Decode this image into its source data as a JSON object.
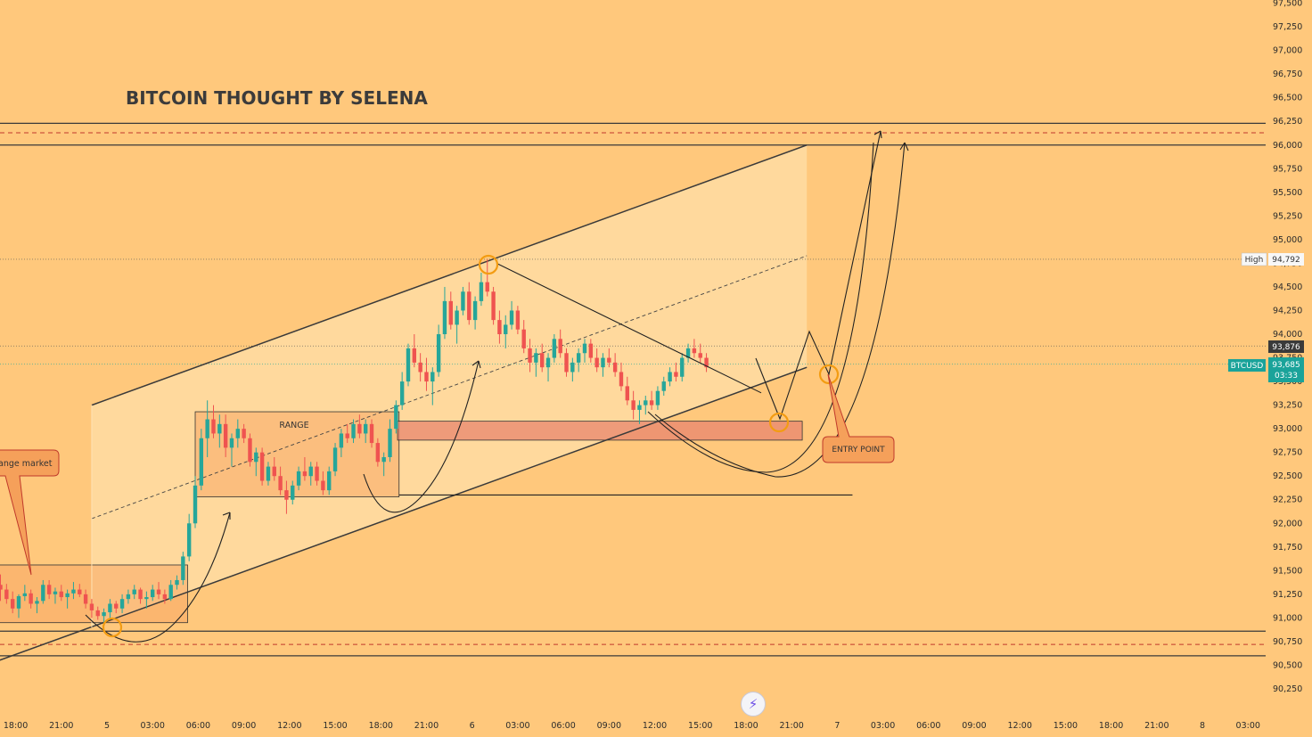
{
  "chart_data": {
    "type": "candlestick",
    "title": "BITCOIN THOUGHT BY SELENA",
    "symbol": "BTCUSD",
    "y_ticks": [
      90250,
      90500,
      90750,
      91000,
      91250,
      91500,
      91750,
      92000,
      92250,
      92500,
      92750,
      93000,
      93250,
      93500,
      93750,
      94000,
      94250,
      94500,
      94750,
      95000,
      95250,
      95500,
      95750,
      96000,
      96250,
      96500,
      96750,
      97000,
      97250,
      97500
    ],
    "y_tick_labels": [
      "90,250",
      "90,500",
      "90,750",
      "91,000",
      "91,250",
      "91,500",
      "91,750",
      "92,000",
      "92,250",
      "92,500",
      "92,750",
      "93,000",
      "93,250",
      "93,500",
      "93,750",
      "94,000",
      "94,250",
      "94,500",
      "94,750",
      "95,000",
      "95,250",
      "95,500",
      "95,750",
      "96,000",
      "96,250",
      "96,500",
      "96,750",
      "97,000",
      "97,250",
      "97,500"
    ],
    "ylim": [
      90100,
      97600
    ],
    "x_ticks": [
      "18:00",
      "21:00",
      "5",
      "03:00",
      "06:00",
      "09:00",
      "12:00",
      "15:00",
      "18:00",
      "21:00",
      "6",
      "03:00",
      "06:00",
      "09:00",
      "12:00",
      "15:00",
      "18:00",
      "21:00",
      "7",
      "03:00",
      "06:00",
      "09:00",
      "12:00",
      "15:00",
      "18:00",
      "21:00",
      "8",
      "03:00"
    ],
    "x_tick_hours": [
      -6,
      -3,
      0,
      3,
      6,
      9,
      12,
      15,
      18,
      21,
      24,
      27,
      30,
      33,
      36,
      39,
      42,
      45,
      48,
      51,
      54,
      57,
      60,
      63,
      66,
      69,
      72,
      75
    ],
    "price_labels": {
      "high_label": "High",
      "high_value": "94,792",
      "high_price": 94792,
      "level_value": "93,876",
      "level_price": 93876,
      "current_value": "93,685",
      "current_price": 93685,
      "countdown": "03:33"
    },
    "annotations": {
      "range_label": "RANGE",
      "range_market_label": "ange market",
      "entry_point_label": "ENTRY POINT"
    },
    "zones": {
      "resistance": [
        96000,
        96230
      ],
      "resistance_mid": 96130,
      "support": [
        90600,
        90860
      ],
      "support_mid": 90720,
      "demand": [
        92880,
        93080
      ],
      "range1": [
        90950,
        91560
      ],
      "range2": [
        92280,
        93180
      ]
    },
    "channel": {
      "upper": [
        [
          -1,
          93250
        ],
        [
          46,
          96000
        ]
      ],
      "lower": [
        [
          -1,
          90900
        ],
        [
          46,
          93650
        ]
      ],
      "mid": [
        [
          -1,
          92050
        ],
        [
          46,
          94830
        ]
      ]
    },
    "candles": [
      [
        -7,
        91350,
        91460,
        91180,
        91300
      ],
      [
        -6.6,
        91300,
        91360,
        91150,
        91200
      ],
      [
        -6.2,
        91200,
        91280,
        91050,
        91100
      ],
      [
        -5.8,
        91100,
        91250,
        91000,
        91230
      ],
      [
        -5.4,
        91230,
        91350,
        91180,
        91260
      ],
      [
        -5,
        91260,
        91300,
        91100,
        91150
      ],
      [
        -4.6,
        91150,
        91220,
        91050,
        91180
      ],
      [
        -4.2,
        91180,
        91400,
        91150,
        91350
      ],
      [
        -3.8,
        91350,
        91400,
        91200,
        91250
      ],
      [
        -3.4,
        91250,
        91320,
        91150,
        91280
      ],
      [
        -3,
        91280,
        91350,
        91180,
        91220
      ],
      [
        -2.6,
        91220,
        91300,
        91100,
        91260
      ],
      [
        -2.2,
        91260,
        91380,
        91200,
        91300
      ],
      [
        -1.8,
        91300,
        91360,
        91220,
        91250
      ],
      [
        -1.4,
        91250,
        91300,
        91100,
        91150
      ],
      [
        -1,
        91150,
        91200,
        91000,
        91080
      ],
      [
        -0.6,
        91080,
        91120,
        90980,
        91020
      ],
      [
        -0.2,
        91020,
        91100,
        90950,
        91060
      ],
      [
        0.2,
        91060,
        91200,
        91000,
        91150
      ],
      [
        0.6,
        91150,
        91180,
        91050,
        91100
      ],
      [
        1,
        91100,
        91250,
        91050,
        91200
      ],
      [
        1.4,
        91200,
        91300,
        91150,
        91250
      ],
      [
        1.8,
        91250,
        91350,
        91200,
        91300
      ],
      [
        2.2,
        91300,
        91320,
        91150,
        91200
      ],
      [
        2.6,
        91200,
        91280,
        91100,
        91220
      ],
      [
        3,
        91220,
        91350,
        91180,
        91300
      ],
      [
        3.4,
        91300,
        91380,
        91200,
        91250
      ],
      [
        3.8,
        91250,
        91300,
        91150,
        91200
      ],
      [
        4.2,
        91200,
        91400,
        91180,
        91350
      ],
      [
        4.6,
        91350,
        91450,
        91300,
        91400
      ],
      [
        5,
        91400,
        91700,
        91350,
        91650
      ],
      [
        5.4,
        91650,
        92100,
        91600,
        92000
      ],
      [
        5.8,
        92000,
        92500,
        91950,
        92400
      ],
      [
        6.2,
        92400,
        93000,
        92350,
        92900
      ],
      [
        6.6,
        92900,
        93300,
        92700,
        93100
      ],
      [
        7,
        93100,
        93250,
        92900,
        92950
      ],
      [
        7.4,
        92950,
        93150,
        92800,
        93050
      ],
      [
        7.8,
        93050,
        93150,
        92700,
        92800
      ],
      [
        8.2,
        92800,
        92950,
        92600,
        92900
      ],
      [
        8.6,
        92900,
        93100,
        92800,
        93000
      ],
      [
        9,
        93000,
        93050,
        92850,
        92900
      ],
      [
        9.4,
        92900,
        92950,
        92600,
        92650
      ],
      [
        9.8,
        92650,
        92800,
        92500,
        92750
      ],
      [
        10.2,
        92750,
        92800,
        92400,
        92450
      ],
      [
        10.6,
        92450,
        92650,
        92400,
        92600
      ],
      [
        11,
        92600,
        92700,
        92450,
        92500
      ],
      [
        11.4,
        92500,
        92600,
        92300,
        92350
      ],
      [
        11.8,
        92350,
        92450,
        92100,
        92250
      ],
      [
        12.2,
        92250,
        92450,
        92200,
        92400
      ],
      [
        12.6,
        92400,
        92600,
        92350,
        92550
      ],
      [
        13,
        92550,
        92700,
        92450,
        92500
      ],
      [
        13.4,
        92500,
        92650,
        92400,
        92600
      ],
      [
        13.8,
        92600,
        92650,
        92400,
        92450
      ],
      [
        14.2,
        92450,
        92550,
        92300,
        92350
      ],
      [
        14.6,
        92350,
        92600,
        92300,
        92550
      ],
      [
        15,
        92550,
        92850,
        92500,
        92800
      ],
      [
        15.4,
        92800,
        93000,
        92700,
        92950
      ],
      [
        15.8,
        92950,
        93050,
        92850,
        92900
      ],
      [
        16.2,
        92900,
        93100,
        92850,
        93050
      ],
      [
        16.6,
        93050,
        93150,
        92900,
        92950
      ],
      [
        17,
        92950,
        93100,
        92850,
        93050
      ],
      [
        17.4,
        93050,
        93100,
        92800,
        92850
      ],
      [
        17.8,
        92850,
        92900,
        92600,
        92650
      ],
      [
        18.2,
        92650,
        92750,
        92500,
        92700
      ],
      [
        18.6,
        92700,
        93100,
        92650,
        93000
      ],
      [
        19,
        93000,
        93300,
        92950,
        93250
      ],
      [
        19.4,
        93250,
        93600,
        93200,
        93500
      ],
      [
        19.8,
        93500,
        93900,
        93450,
        93850
      ],
      [
        20.2,
        93850,
        94000,
        93650,
        93700
      ],
      [
        20.6,
        93700,
        93800,
        93500,
        93600
      ],
      [
        21,
        93600,
        93750,
        93400,
        93500
      ],
      [
        21.4,
        93500,
        93650,
        93250,
        93600
      ],
      [
        21.8,
        93600,
        94100,
        93550,
        94000
      ],
      [
        22.2,
        94000,
        94500,
        93950,
        94350
      ],
      [
        22.6,
        94350,
        94450,
        94050,
        94100
      ],
      [
        23,
        94100,
        94300,
        93900,
        94250
      ],
      [
        23.4,
        94250,
        94500,
        94200,
        94450
      ],
      [
        23.8,
        94450,
        94550,
        94100,
        94150
      ],
      [
        24.2,
        94150,
        94400,
        94050,
        94350
      ],
      [
        24.6,
        94350,
        94650,
        94300,
        94550
      ],
      [
        25,
        94550,
        94792,
        94400,
        94450
      ],
      [
        25.4,
        94450,
        94500,
        94100,
        94150
      ],
      [
        25.8,
        94150,
        94250,
        93900,
        94000
      ],
      [
        26.2,
        94000,
        94200,
        93850,
        94100
      ],
      [
        26.6,
        94100,
        94350,
        94050,
        94250
      ],
      [
        27,
        94250,
        94300,
        94000,
        94050
      ],
      [
        27.4,
        94050,
        94150,
        93800,
        93850
      ],
      [
        27.8,
        93850,
        93950,
        93600,
        93700
      ],
      [
        28.2,
        93700,
        93850,
        93550,
        93800
      ],
      [
        28.6,
        93800,
        93900,
        93600,
        93650
      ],
      [
        29,
        93650,
        93800,
        93500,
        93750
      ],
      [
        29.4,
        93750,
        94000,
        93700,
        93950
      ],
      [
        29.8,
        93950,
        94050,
        93750,
        93800
      ],
      [
        30.2,
        93800,
        93850,
        93550,
        93600
      ],
      [
        30.6,
        93600,
        93750,
        93500,
        93700
      ],
      [
        31,
        93700,
        93850,
        93600,
        93800
      ],
      [
        31.4,
        93800,
        93950,
        93700,
        93900
      ],
      [
        31.8,
        93900,
        93950,
        93700,
        93750
      ],
      [
        32.2,
        93750,
        93850,
        93600,
        93650
      ],
      [
        32.6,
        93650,
        93800,
        93550,
        93750
      ],
      [
        33,
        93750,
        93850,
        93650,
        93700
      ],
      [
        33.4,
        93700,
        93800,
        93550,
        93600
      ],
      [
        33.8,
        93600,
        93700,
        93400,
        93450
      ],
      [
        34.2,
        93450,
        93550,
        93250,
        93300
      ],
      [
        34.6,
        93300,
        93400,
        93100,
        93200
      ],
      [
        35,
        93200,
        93300,
        93050,
        93250
      ],
      [
        35.4,
        93250,
        93350,
        93150,
        93300
      ],
      [
        35.8,
        93300,
        93400,
        93200,
        93250
      ],
      [
        36.2,
        93250,
        93450,
        93200,
        93400
      ],
      [
        36.6,
        93400,
        93550,
        93350,
        93500
      ],
      [
        37,
        93500,
        93650,
        93450,
        93600
      ],
      [
        37.4,
        93600,
        93700,
        93500,
        93550
      ],
      [
        37.8,
        93550,
        93800,
        93500,
        93750
      ],
      [
        38.2,
        93750,
        93900,
        93700,
        93850
      ],
      [
        38.6,
        93850,
        93950,
        93750,
        93800
      ],
      [
        39,
        93800,
        93900,
        93700,
        93750
      ],
      [
        39.4,
        93750,
        93800,
        93600,
        93650
      ]
    ]
  }
}
